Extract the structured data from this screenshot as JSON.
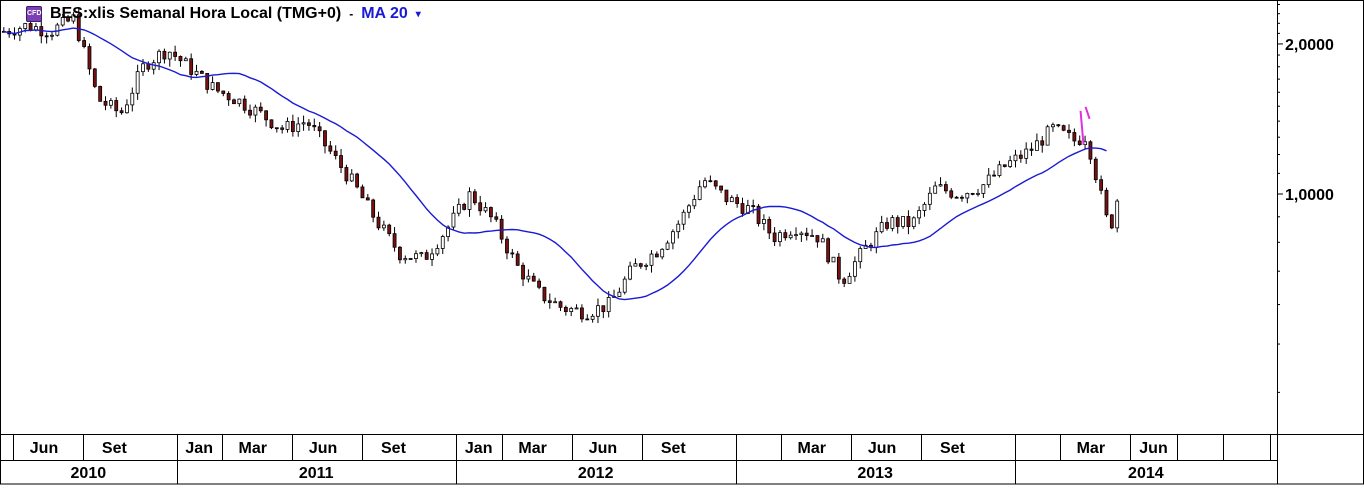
{
  "legend": {
    "icon": "cfd-icon",
    "title": "BES:xlis Semanal Hora Local (TMG+0)",
    "separator": "-",
    "ma_label": "MA 20",
    "ma_caret": "▾"
  },
  "colors": {
    "up_body": "#ffffff",
    "down_body": "#7a1010",
    "wick": "#000000",
    "ma_line": "#1a1ad4",
    "annotation": "#e030e0",
    "grid": "#000000"
  },
  "chart_data": {
    "type": "candlestick",
    "title": "BES:xlis Semanal Hora Local (TMG+0)",
    "y_scale": "log",
    "ylim": [
      0.33,
      2.45
    ],
    "y_ticks": [
      {
        "value": 2.0,
        "label": "2,0000"
      },
      {
        "value": 1.0,
        "label": "1,0000"
      }
    ],
    "x_range": [
      "2010-05-15",
      "2014-12-10"
    ],
    "x_month_labels": [
      {
        "date": "2010-06-01",
        "label": "Jun"
      },
      {
        "date": "2010-09-01",
        "label": "Set"
      },
      {
        "date": "2011-01-01",
        "label": "Jan"
      },
      {
        "date": "2011-03-01",
        "label": "Mar"
      },
      {
        "date": "2011-06-01",
        "label": "Jun"
      },
      {
        "date": "2011-09-01",
        "label": "Set"
      },
      {
        "date": "2012-01-01",
        "label": "Jan"
      },
      {
        "date": "2012-03-01",
        "label": "Mar"
      },
      {
        "date": "2012-06-01",
        "label": "Jun"
      },
      {
        "date": "2012-09-01",
        "label": "Set"
      },
      {
        "date": "2013-01-01",
        "label": ""
      },
      {
        "date": "2013-03-01",
        "label": "Mar"
      },
      {
        "date": "2013-06-01",
        "label": "Jun"
      },
      {
        "date": "2013-09-01",
        "label": "Set"
      },
      {
        "date": "2014-01-01",
        "label": ""
      },
      {
        "date": "2014-03-01",
        "label": "Mar"
      },
      {
        "date": "2014-06-01",
        "label": "Jun"
      },
      {
        "date": "2014-08-01",
        "label": ""
      },
      {
        "date": "2014-10-01",
        "label": ""
      },
      {
        "date": "2014-12-01",
        "label": ""
      }
    ],
    "x_year_labels": [
      {
        "label": "2010",
        "from": "2010-05-15",
        "to": "2011-01-01"
      },
      {
        "label": "2011",
        "from": "2011-01-01",
        "to": "2012-01-01"
      },
      {
        "label": "2012",
        "from": "2012-01-01",
        "to": "2013-01-01"
      },
      {
        "label": "2013",
        "from": "2013-01-01",
        "to": "2014-01-01"
      },
      {
        "label": "2014",
        "from": "2014-01-01",
        "to": "2014-12-10"
      }
    ],
    "close_anchors": [
      [
        "2010-05-20",
        2.12
      ],
      [
        "2010-06-20",
        2.18
      ],
      [
        "2010-07-20",
        2.12
      ],
      [
        "2010-08-20",
        2.25
      ],
      [
        "2010-09-20",
        1.55
      ],
      [
        "2010-10-20",
        1.45
      ],
      [
        "2010-11-20",
        1.82
      ],
      [
        "2010-12-20",
        1.95
      ],
      [
        "2011-01-20",
        1.78
      ],
      [
        "2011-02-20",
        1.62
      ],
      [
        "2011-03-20",
        1.55
      ],
      [
        "2011-04-20",
        1.45
      ],
      [
        "2011-05-20",
        1.35
      ],
      [
        "2011-06-20",
        1.4
      ],
      [
        "2011-07-20",
        1.22
      ],
      [
        "2011-08-20",
        1.05
      ],
      [
        "2011-09-20",
        0.88
      ],
      [
        "2011-10-20",
        0.76
      ],
      [
        "2011-11-20",
        0.74
      ],
      [
        "2011-12-20",
        0.85
      ],
      [
        "2012-01-20",
        1.0
      ],
      [
        "2012-02-20",
        0.88
      ],
      [
        "2012-03-20",
        0.72
      ],
      [
        "2012-04-20",
        0.63
      ],
      [
        "2012-05-20",
        0.59
      ],
      [
        "2012-06-20",
        0.58
      ],
      [
        "2012-07-20",
        0.6
      ],
      [
        "2012-08-20",
        0.71
      ],
      [
        "2012-09-20",
        0.77
      ],
      [
        "2012-10-20",
        0.88
      ],
      [
        "2012-11-20",
        1.07
      ],
      [
        "2012-12-20",
        0.98
      ],
      [
        "2013-01-20",
        0.93
      ],
      [
        "2013-02-20",
        0.82
      ],
      [
        "2013-03-20",
        0.86
      ],
      [
        "2013-04-20",
        0.82
      ],
      [
        "2013-05-20",
        0.67
      ],
      [
        "2013-06-20",
        0.78
      ],
      [
        "2013-07-20",
        0.88
      ],
      [
        "2013-08-20",
        0.87
      ],
      [
        "2013-09-20",
        1.03
      ],
      [
        "2013-10-20",
        1.0
      ],
      [
        "2013-11-20",
        1.04
      ],
      [
        "2013-12-20",
        1.14
      ],
      [
        "2014-01-20",
        1.22
      ],
      [
        "2014-02-20",
        1.35
      ],
      [
        "2014-03-20",
        1.28
      ],
      [
        "2014-04-05",
        1.31
      ],
      [
        "2014-04-20",
        1.05
      ],
      [
        "2014-05-05",
        0.84
      ],
      [
        "2014-05-20",
        1.05
      ]
    ],
    "ma_period": 20,
    "ma_end": "2014-05-01",
    "annotation_date": "2014-04-01"
  }
}
